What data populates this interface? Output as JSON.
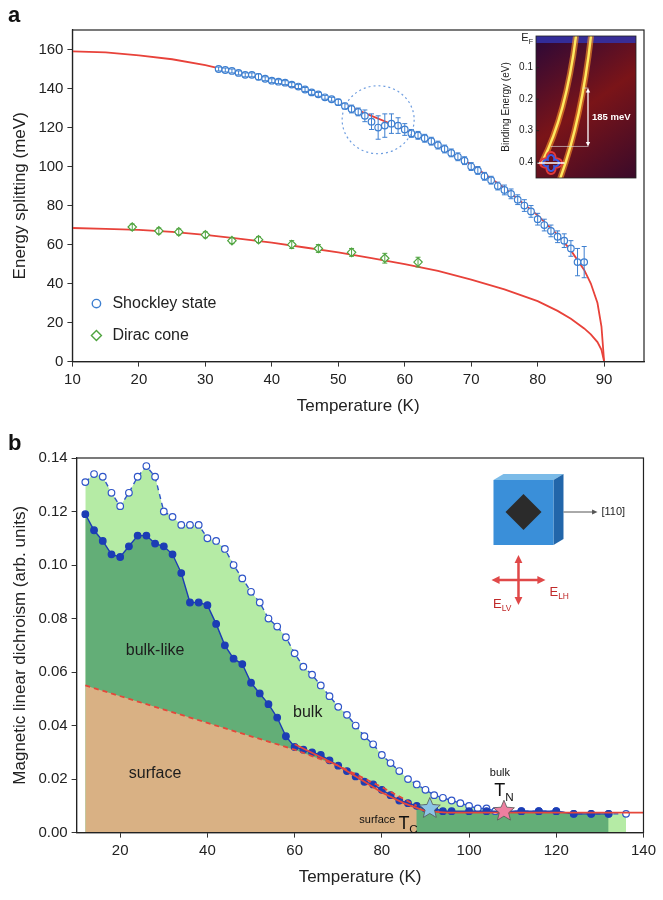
{
  "chart_data": [
    {
      "type": "scatter",
      "panel": "a",
      "x_label": "Temperature (K)",
      "y_label": "Energy splitting (meV)",
      "xlim": [
        10,
        96
      ],
      "xticks": [
        10,
        20,
        30,
        40,
        50,
        60,
        70,
        80,
        90
      ],
      "ylim": [
        0,
        170
      ],
      "yticks": [
        0,
        20,
        40,
        60,
        80,
        100,
        120,
        140,
        160
      ],
      "grid": false,
      "legend": "lower left",
      "series": [
        {
          "name": "Shockley state",
          "type": "scatter",
          "color": "#3d7fd0",
          "marker": "circle-open",
          "line_style": "none",
          "x": [
            32,
            33,
            34,
            35,
            36,
            37,
            38,
            39,
            40,
            41,
            42,
            43,
            44,
            45,
            46,
            47,
            48,
            49,
            50,
            51,
            52,
            53,
            54,
            55,
            56,
            57,
            58,
            59,
            60,
            61,
            62,
            63,
            64,
            65,
            66,
            67,
            68,
            69,
            70,
            71,
            72,
            73,
            74,
            75,
            76,
            77,
            78,
            79,
            80,
            81,
            82,
            83,
            84,
            85,
            86,
            87
          ],
          "values": [
            150,
            149.5,
            149,
            148,
            147,
            147,
            146,
            145,
            144,
            143.5,
            143,
            142,
            141,
            139.5,
            138,
            137,
            135.5,
            134.5,
            133,
            131,
            129.5,
            128,
            126,
            123,
            120,
            121,
            122,
            121,
            119,
            117,
            116,
            114.5,
            113,
            111,
            109,
            107,
            105,
            103,
            100,
            98,
            95,
            93,
            90,
            88,
            86,
            83,
            80,
            77,
            73,
            70,
            67,
            64,
            62,
            58,
            51,
            51
          ],
          "errors": [
            1,
            1,
            1,
            1,
            1,
            1,
            1.5,
            1,
            1,
            1,
            1,
            1,
            1,
            1,
            1,
            1,
            1,
            1,
            1.5,
            1.5,
            2,
            2,
            3,
            4,
            6,
            6,
            5,
            4,
            3,
            2,
            2,
            2,
            2,
            2,
            2,
            2,
            2,
            2,
            2,
            2,
            2,
            2,
            2,
            2.5,
            2.5,
            2.5,
            3,
            3,
            3,
            3,
            3,
            3,
            3.5,
            4,
            7,
            8
          ]
        },
        {
          "name": "Dirac cone",
          "type": "scatter",
          "color": "#4fa43f",
          "marker": "diamond-open",
          "line_style": "none",
          "x": [
            19,
            23,
            26,
            30,
            34,
            38,
            43,
            47,
            52,
            57,
            62
          ],
          "values": [
            69,
            67,
            66.5,
            65,
            62,
            62.5,
            60,
            58,
            56,
            53,
            51
          ],
          "errors": [
            1.5,
            1.5,
            1.5,
            1.5,
            1.5,
            1.5,
            2,
            2,
            2,
            2.5,
            2.5
          ]
        },
        {
          "type": "line",
          "color": "#e8423a",
          "marker": "none",
          "line_style": "solid",
          "x": [
            10,
            15,
            20,
            25,
            30,
            35,
            40,
            45,
            50,
            55,
            60,
            65,
            70,
            75,
            80,
            83,
            85,
            87,
            88,
            89,
            89.6,
            90
          ],
          "values": [
            159,
            158.5,
            157,
            155,
            152,
            148,
            144,
            139,
            133,
            126,
            119,
            111,
            101,
            89,
            75,
            65,
            57,
            47,
            40,
            30,
            18,
            0
          ]
        },
        {
          "type": "line",
          "color": "#e8423a",
          "marker": "none",
          "line_style": "solid",
          "x": [
            10,
            15,
            20,
            25,
            30,
            35,
            40,
            45,
            50,
            55,
            60,
            65,
            70,
            75,
            80,
            83,
            85,
            87,
            88,
            89,
            89.6,
            90
          ],
          "values": [
            68.5,
            68,
            67.5,
            66.5,
            65,
            63,
            61,
            58.5,
            56,
            53,
            50,
            46.5,
            42,
            37,
            31,
            26,
            22,
            17,
            14,
            10,
            6,
            0
          ]
        }
      ],
      "highlight": {
        "x": 56,
        "y": 124,
        "color": "#6f9ee0",
        "line_style": "dotted"
      },
      "inset": {
        "top_label": {
          "text": "E",
          "subscript": "F"
        },
        "y_label": "Binding Energy (eV)",
        "ylim": [
          0,
          0.45
        ],
        "yticks": [
          0.1,
          0.2,
          0.3,
          0.4
        ],
        "arrow": {
          "from": 0.165,
          "to": 0.35,
          "label": "185 meV"
        }
      }
    },
    {
      "type": "line",
      "panel": "b",
      "x_label": "Temperature (K)",
      "y_label": "Magnetic linear dichroism (arb. units)",
      "xlim": [
        10,
        140
      ],
      "xticks": [
        20,
        40,
        60,
        80,
        100,
        120,
        140
      ],
      "ylim": [
        0,
        0.14
      ],
      "yticks": [
        {
          "value": 0,
          "label": "0.00"
        },
        0.02,
        0.04,
        0.06,
        0.08,
        {
          "value": 0.1,
          "label": "0.10"
        },
        0.12,
        0.14
      ],
      "grid": false,
      "series": [
        {
          "color": "#1c3db5",
          "marker": "circle",
          "line_style": "solid",
          "x": [
            12,
            14,
            16,
            18,
            20,
            22,
            24,
            26,
            28,
            30,
            32,
            34,
            36,
            38,
            40,
            42,
            44,
            46,
            48,
            50,
            52,
            54,
            56,
            58,
            60,
            62,
            64,
            66,
            68,
            70,
            72,
            74,
            76,
            78,
            80,
            82,
            84,
            86,
            88,
            90,
            92,
            94,
            96,
            100,
            104,
            108,
            112,
            116,
            120,
            124,
            128,
            132
          ],
          "values": [
            0.119,
            0.113,
            0.109,
            0.104,
            0.103,
            0.107,
            0.111,
            0.111,
            0.108,
            0.107,
            0.104,
            0.097,
            0.086,
            0.086,
            0.085,
            0.078,
            0.07,
            0.065,
            0.063,
            0.056,
            0.052,
            0.048,
            0.043,
            0.036,
            0.032,
            0.031,
            0.03,
            0.029,
            0.027,
            0.025,
            0.023,
            0.021,
            0.019,
            0.018,
            0.016,
            0.014,
            0.012,
            0.011,
            0.01,
            0.009,
            0.009,
            0.008,
            0.008,
            0.008,
            0.008,
            0.008,
            0.008,
            0.008,
            0.008,
            0.007,
            0.007,
            0.007
          ]
        },
        {
          "color": "#2f55c8",
          "marker": "circle-open",
          "line_style": "dashed",
          "x": [
            12,
            14,
            16,
            18,
            20,
            22,
            24,
            26,
            28,
            30,
            32,
            34,
            36,
            38,
            40,
            42,
            44,
            46,
            48,
            50,
            52,
            54,
            56,
            58,
            60,
            62,
            64,
            66,
            68,
            70,
            72,
            74,
            76,
            78,
            80,
            82,
            84,
            86,
            88,
            90,
            92,
            94,
            96,
            98,
            100,
            102,
            104,
            106,
            108,
            112,
            116,
            120,
            124,
            128,
            132,
            136
          ],
          "values": [
            0.131,
            0.134,
            0.133,
            0.127,
            0.122,
            0.127,
            0.133,
            0.137,
            0.133,
            0.12,
            0.118,
            0.115,
            0.115,
            0.115,
            0.11,
            0.109,
            0.106,
            0.1,
            0.095,
            0.09,
            0.086,
            0.08,
            0.077,
            0.073,
            0.067,
            0.062,
            0.059,
            0.055,
            0.051,
            0.047,
            0.044,
            0.04,
            0.036,
            0.033,
            0.029,
            0.026,
            0.023,
            0.02,
            0.018,
            0.016,
            0.014,
            0.013,
            0.012,
            0.011,
            0.01,
            0.009,
            0.009,
            0.008,
            0.008,
            0.008,
            0.008,
            0.008,
            0.007,
            0.007,
            0.007,
            0.007
          ]
        },
        {
          "color": "#e5473a",
          "marker": "none",
          "line_style": "dashed",
          "x": [
            12,
            30,
            50,
            60,
            70,
            80,
            88
          ],
          "values": [
            0.055,
            0.046,
            0.036,
            0.031,
            0.025,
            0.017,
            0.01
          ]
        },
        {
          "color": "#e5473a",
          "marker": "none",
          "line_style": "solid",
          "x": [
            60,
            65,
            70,
            75,
            80,
            85,
            90,
            95,
            100,
            110,
            120,
            130,
            140
          ],
          "values": [
            0.033,
            0.029,
            0.025,
            0.02,
            0.015,
            0.011,
            0.008,
            0.0075,
            0.0075,
            0.0075,
            0.0075,
            0.0075,
            0.0075
          ]
        }
      ],
      "annotations": [
        {
          "text": "bulk-like",
          "x": 28,
          "y": 0.068,
          "color": "#4f9f6c"
        },
        {
          "text": "bulk",
          "x": 63,
          "y": 0.045,
          "color": "#a3e68f"
        },
        {
          "text": "surface",
          "x": 28,
          "y": 0.022,
          "color": "#f6b187"
        }
      ],
      "markers": [
        {
          "marker": "star",
          "x": 91,
          "y": 0.009,
          "color": "#8cc4e6",
          "text": "T",
          "subscript": "C",
          "superscript": "surface"
        },
        {
          "marker": "star",
          "x": 108,
          "y": 0.008,
          "color": "#ee7fa0",
          "text": "T",
          "subscript": "N",
          "superscript": "bulk"
        }
      ],
      "inset": {
        "direction": "[110]",
        "polarizations": [
          {
            "text": "E",
            "subscript": "LH"
          },
          {
            "text": "E",
            "subscript": "LV"
          }
        ]
      }
    }
  ]
}
